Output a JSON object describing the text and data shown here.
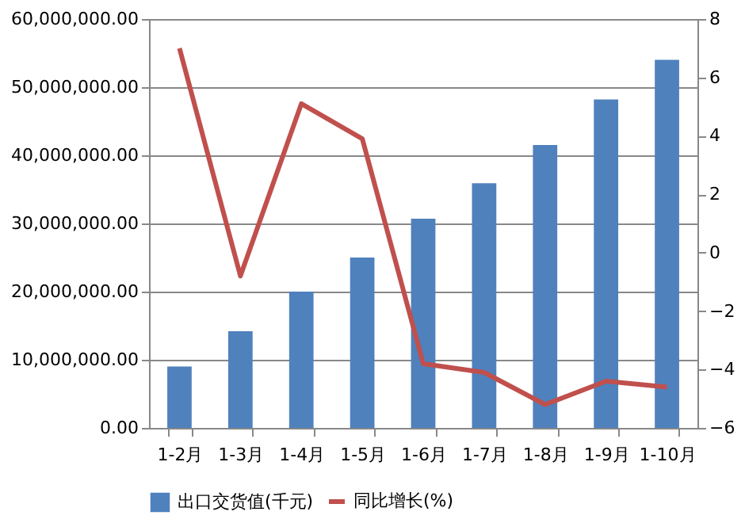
{
  "chart_data": {
    "type": "bar",
    "categories": [
      "1-2月",
      "1-3月",
      "1-4月",
      "1-5月",
      "1-6月",
      "1-7月",
      "1-8月",
      "1-9月",
      "1-10月"
    ],
    "series": [
      {
        "name": "出口交货值(千元)",
        "color": "#4f81bd",
        "values": [
          9000000,
          14200000,
          20000000,
          25000000,
          30700000,
          35900000,
          41500000,
          48200000,
          54000000
        ]
      },
      {
        "name": "同比增长(%)",
        "type": "line",
        "axis": "y2",
        "color": "#c0504d",
        "values": [
          7.0,
          -0.8,
          5.1,
          3.9,
          -3.8,
          -4.1,
          -5.2,
          -4.4,
          -4.6
        ]
      }
    ],
    "ylim": [
      0,
      60000000
    ],
    "yticks": [
      {
        "value": 0,
        "label": "0.00"
      },
      {
        "value": 10000000,
        "label": "10,000,000.00"
      },
      {
        "value": 20000000,
        "label": "20,000,000.00"
      },
      {
        "value": 30000000,
        "label": "30,000,000.00"
      },
      {
        "value": 40000000,
        "label": "40,000,000.00"
      },
      {
        "value": 50000000,
        "label": "50,000,000.00"
      },
      {
        "value": 60000000,
        "label": "60,000,000.00"
      }
    ],
    "y2lim": [
      -6,
      8
    ],
    "y2ticks": [
      -6,
      -4,
      -2,
      0,
      2,
      4,
      6,
      8
    ],
    "grid": "y",
    "legend": "bottom",
    "marker": "none"
  }
}
